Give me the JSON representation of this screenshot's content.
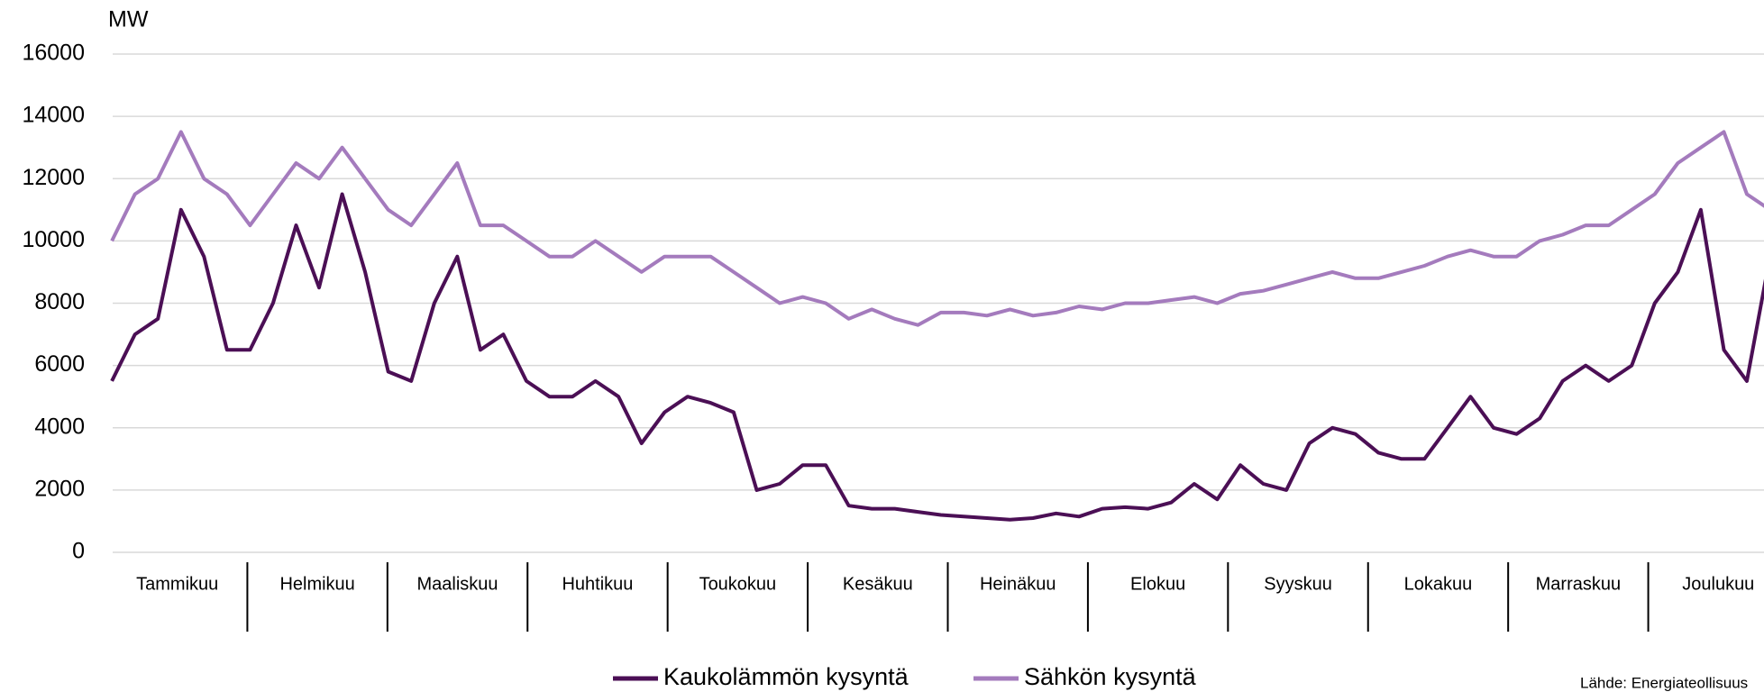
{
  "chart_data": {
    "type": "line",
    "y_unit": "MW",
    "source": "Lähde: Energiateollisuus",
    "categories": [
      "Tammikuu",
      "Helmikuu",
      "Maaliskuu",
      "Huhtikuu",
      "Toukokuu",
      "Kesäkuu",
      "Heinäkuu",
      "Elokuu",
      "Syyskuu",
      "Lokakuu",
      "Marraskuu",
      "Joulukuu"
    ],
    "x": [
      1,
      6,
      11,
      16,
      21,
      26,
      31,
      36,
      41,
      46,
      51,
      56,
      61,
      66,
      71,
      76,
      81,
      86,
      91,
      96,
      101,
      106,
      111,
      116,
      121,
      126,
      131,
      136,
      141,
      146,
      151,
      156,
      161,
      166,
      171,
      176,
      181,
      186,
      191,
      196,
      201,
      206,
      211,
      216,
      221,
      226,
      231,
      236,
      241,
      246,
      251,
      256,
      261,
      266,
      271,
      276,
      281,
      286,
      291,
      296,
      301,
      306,
      311,
      316,
      321,
      326,
      331,
      336,
      341,
      346,
      351,
      356,
      361
    ],
    "xlim": [
      0,
      365
    ],
    "ylim": [
      0,
      16000
    ],
    "yticks": [
      0,
      2000,
      4000,
      6000,
      8000,
      10000,
      12000,
      14000,
      16000
    ],
    "grid": true,
    "series": [
      {
        "name": "Kaukolämmön kysyntä",
        "color": "#4b0f55",
        "values": [
          5500,
          7000,
          7500,
          11000,
          9500,
          6500,
          6500,
          8000,
          10500,
          8500,
          11500,
          9000,
          5800,
          5500,
          8000,
          9500,
          6500,
          7000,
          5500,
          5000,
          5000,
          5500,
          5000,
          3500,
          4500,
          5000,
          4800,
          4500,
          2000,
          2200,
          2800,
          2800,
          1500,
          1400,
          1400,
          1300,
          1200,
          1150,
          1100,
          1050,
          1100,
          1250,
          1150,
          1400,
          1450,
          1400,
          1600,
          2200,
          1700,
          2800,
          2200,
          2000,
          3500,
          4000,
          3800,
          3200,
          3000,
          3000,
          4000,
          5000,
          4000,
          3800,
          4300,
          5500,
          6000,
          5500,
          6000,
          8000,
          9000,
          11000,
          6500,
          5500,
          9500
        ]
      },
      {
        "name": "Sähkön kysyntä",
        "color": "#a47bbd",
        "values": [
          10000,
          11500,
          12000,
          13500,
          12000,
          11500,
          10500,
          11500,
          12500,
          12000,
          13000,
          12000,
          11000,
          10500,
          11500,
          12500,
          10500,
          10500,
          10000,
          9500,
          9500,
          10000,
          9500,
          9000,
          9500,
          9500,
          9500,
          9000,
          8500,
          8000,
          8200,
          8000,
          7500,
          7800,
          7500,
          7300,
          7700,
          7700,
          7600,
          7800,
          7600,
          7700,
          7900,
          7800,
          8000,
          8000,
          8100,
          8200,
          8000,
          8300,
          8400,
          8600,
          8800,
          9000,
          8800,
          8800,
          9000,
          9200,
          9500,
          9700,
          9500,
          9500,
          10000,
          10200,
          10500,
          10500,
          11000,
          11500,
          12500,
          13000,
          13500,
          11500,
          11000
        ]
      }
    ]
  }
}
